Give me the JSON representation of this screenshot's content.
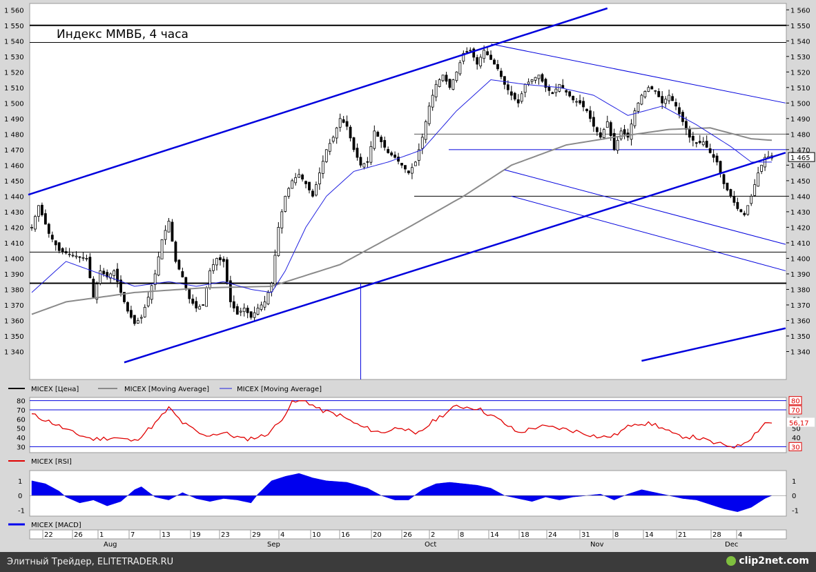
{
  "chart_title": "Индекс ММВБ, 4 часа",
  "footer": {
    "credit": "Элитный Трейдер, ELITETRADER.RU",
    "brand": "clip2net.com"
  },
  "colors": {
    "price": "#000000",
    "ma_long": "#8a8a8a",
    "ma_short": "#2020e0",
    "lines": "#0000dd",
    "rsi": "#e00000",
    "macd": "#0000ee",
    "background": "#ffffff",
    "frame": "#d8d8d8"
  },
  "chart_data": [
    {
      "type": "candlestick",
      "title": "Индекс ММВБ, 4 часа",
      "y_ticks": [
        "1 560",
        "1 550",
        "1 540",
        "1 530",
        "1 520",
        "1 510",
        "1 500",
        "1 490",
        "1 480",
        "1 470",
        "1 460",
        "1 450",
        "1 440",
        "1 430",
        "1 420",
        "1 410",
        "1 400",
        "1 390",
        "1 380",
        "1 370",
        "1 360",
        "1 350",
        "1 340"
      ],
      "ylim": [
        1330,
        1561
      ],
      "last_value_label": "1 465",
      "last_value": 1465,
      "horizontal_levels": [
        1550,
        1539,
        1480,
        1470,
        1440,
        1404,
        1384
      ],
      "legend": [
        "MICEX [Цена]",
        "MICEX [Moving Average]",
        "MICEX [Moving Average]"
      ],
      "close_anchors": [
        [
          0,
          1420
        ],
        [
          2,
          1434
        ],
        [
          5,
          1416
        ],
        [
          8,
          1405
        ],
        [
          12,
          1402
        ],
        [
          16,
          1400
        ],
        [
          18,
          1375
        ],
        [
          20,
          1392
        ],
        [
          22,
          1388
        ],
        [
          24,
          1392
        ],
        [
          26,
          1378
        ],
        [
          28,
          1366
        ],
        [
          30,
          1358
        ],
        [
          32,
          1362
        ],
        [
          34,
          1375
        ],
        [
          36,
          1390
        ],
        [
          38,
          1412
        ],
        [
          40,
          1424
        ],
        [
          42,
          1398
        ],
        [
          44,
          1388
        ],
        [
          46,
          1374
        ],
        [
          48,
          1368
        ],
        [
          50,
          1370
        ],
        [
          52,
          1392
        ],
        [
          54,
          1400
        ],
        [
          56,
          1398
        ],
        [
          58,
          1372
        ],
        [
          60,
          1364
        ],
        [
          62,
          1368
        ],
        [
          64,
          1362
        ],
        [
          66,
          1368
        ],
        [
          68,
          1372
        ],
        [
          70,
          1384
        ],
        [
          72,
          1420
        ],
        [
          74,
          1440
        ],
        [
          76,
          1450
        ],
        [
          78,
          1454
        ],
        [
          80,
          1448
        ],
        [
          82,
          1440
        ],
        [
          84,
          1455
        ],
        [
          86,
          1470
        ],
        [
          88,
          1478
        ],
        [
          90,
          1490
        ],
        [
          92,
          1485
        ],
        [
          94,
          1470
        ],
        [
          96,
          1460
        ],
        [
          98,
          1462
        ],
        [
          100,
          1482
        ],
        [
          102,
          1475
        ],
        [
          104,
          1468
        ],
        [
          106,
          1465
        ],
        [
          108,
          1460
        ],
        [
          110,
          1455
        ],
        [
          112,
          1462
        ],
        [
          114,
          1478
        ],
        [
          116,
          1498
        ],
        [
          118,
          1512
        ],
        [
          120,
          1518
        ],
        [
          122,
          1510
        ],
        [
          124,
          1520
        ],
        [
          126,
          1532
        ],
        [
          128,
          1534
        ],
        [
          130,
          1525
        ],
        [
          132,
          1534
        ],
        [
          134,
          1528
        ],
        [
          136,
          1522
        ],
        [
          138,
          1512
        ],
        [
          140,
          1505
        ],
        [
          142,
          1500
        ],
        [
          144,
          1512
        ],
        [
          146,
          1515
        ],
        [
          148,
          1518
        ],
        [
          150,
          1510
        ],
        [
          152,
          1506
        ],
        [
          154,
          1512
        ],
        [
          156,
          1507
        ],
        [
          158,
          1502
        ],
        [
          160,
          1500
        ],
        [
          162,
          1495
        ],
        [
          164,
          1485
        ],
        [
          166,
          1478
        ],
        [
          168,
          1488
        ],
        [
          170,
          1470
        ],
        [
          172,
          1482
        ],
        [
          174,
          1478
        ],
        [
          176,
          1495
        ],
        [
          178,
          1505
        ],
        [
          180,
          1510
        ],
        [
          182,
          1508
        ],
        [
          184,
          1500
        ],
        [
          186,
          1505
        ],
        [
          188,
          1498
        ],
        [
          190,
          1488
        ],
        [
          192,
          1478
        ],
        [
          194,
          1474
        ],
        [
          196,
          1475
        ],
        [
          198,
          1468
        ],
        [
          200,
          1462
        ],
        [
          202,
          1448
        ],
        [
          204,
          1440
        ],
        [
          206,
          1432
        ],
        [
          208,
          1428
        ],
        [
          210,
          1440
        ],
        [
          212,
          1455
        ],
        [
          214,
          1465
        ],
        [
          216,
          1466
        ]
      ],
      "moving_average_short": [
        [
          0,
          1378
        ],
        [
          10,
          1398
        ],
        [
          20,
          1390
        ],
        [
          30,
          1382
        ],
        [
          40,
          1385
        ],
        [
          48,
          1382
        ],
        [
          56,
          1385
        ],
        [
          64,
          1380
        ],
        [
          70,
          1378
        ],
        [
          74,
          1392
        ],
        [
          80,
          1420
        ],
        [
          86,
          1440
        ],
        [
          94,
          1456
        ],
        [
          104,
          1462
        ],
        [
          114,
          1470
        ],
        [
          124,
          1495
        ],
        [
          134,
          1515
        ],
        [
          144,
          1512
        ],
        [
          154,
          1510
        ],
        [
          164,
          1505
        ],
        [
          174,
          1492
        ],
        [
          184,
          1498
        ],
        [
          194,
          1486
        ],
        [
          204,
          1472
        ],
        [
          210,
          1462
        ],
        [
          216,
          1462
        ]
      ],
      "moving_average_long": [
        [
          0,
          1364
        ],
        [
          10,
          1372
        ],
        [
          30,
          1378
        ],
        [
          50,
          1381
        ],
        [
          70,
          1382
        ],
        [
          90,
          1396
        ],
        [
          110,
          1420
        ],
        [
          126,
          1440
        ],
        [
          140,
          1460
        ],
        [
          156,
          1473
        ],
        [
          170,
          1478
        ],
        [
          186,
          1483
        ],
        [
          198,
          1484
        ],
        [
          210,
          1477
        ],
        [
          216,
          1476
        ]
      ]
    },
    {
      "type": "line",
      "title": "MICEX [RSI]",
      "y_ticks": [
        "80",
        "70",
        "60",
        "50",
        "40",
        "30"
      ],
      "ylim": [
        25,
        82
      ],
      "levels": [
        80,
        70,
        30
      ],
      "level_labels": [
        "80",
        "70",
        "30"
      ],
      "last_value_label": "56,17",
      "last_value": 56.17,
      "values": [
        [
          0,
          65
        ],
        [
          6,
          56
        ],
        [
          12,
          45
        ],
        [
          18,
          38
        ],
        [
          24,
          40
        ],
        [
          30,
          36
        ],
        [
          36,
          55
        ],
        [
          40,
          72
        ],
        [
          44,
          56
        ],
        [
          50,
          42
        ],
        [
          56,
          45
        ],
        [
          62,
          38
        ],
        [
          68,
          42
        ],
        [
          72,
          55
        ],
        [
          76,
          78
        ],
        [
          80,
          80
        ],
        [
          84,
          70
        ],
        [
          90,
          64
        ],
        [
          96,
          52
        ],
        [
          102,
          45
        ],
        [
          108,
          52
        ],
        [
          112,
          42
        ],
        [
          118,
          60
        ],
        [
          124,
          74
        ],
        [
          130,
          72
        ],
        [
          136,
          60
        ],
        [
          142,
          45
        ],
        [
          148,
          52
        ],
        [
          154,
          50
        ],
        [
          160,
          46
        ],
        [
          166,
          40
        ],
        [
          170,
          42
        ],
        [
          176,
          56
        ],
        [
          182,
          54
        ],
        [
          188,
          42
        ],
        [
          194,
          40
        ],
        [
          200,
          33
        ],
        [
          206,
          30
        ],
        [
          210,
          40
        ],
        [
          214,
          56
        ],
        [
          216,
          56
        ]
      ]
    },
    {
      "type": "area",
      "title": "MICEX [MACD]",
      "y_ticks": [
        "1",
        "0",
        "-1"
      ],
      "ylim": [
        -1.3,
        1.6
      ],
      "values": [
        [
          0,
          1.0
        ],
        [
          4,
          0.8
        ],
        [
          8,
          0.3
        ],
        [
          10,
          -0.1
        ],
        [
          14,
          -0.5
        ],
        [
          18,
          -0.3
        ],
        [
          22,
          -0.7
        ],
        [
          26,
          -0.4
        ],
        [
          30,
          0.4
        ],
        [
          32,
          0.6
        ],
        [
          36,
          -0.1
        ],
        [
          40,
          -0.3
        ],
        [
          44,
          0.2
        ],
        [
          48,
          -0.2
        ],
        [
          52,
          -0.4
        ],
        [
          56,
          -0.2
        ],
        [
          60,
          -0.3
        ],
        [
          64,
          -0.5
        ],
        [
          66,
          0.1
        ],
        [
          70,
          1.0
        ],
        [
          74,
          1.3
        ],
        [
          78,
          1.5
        ],
        [
          82,
          1.2
        ],
        [
          86,
          1.0
        ],
        [
          92,
          0.9
        ],
        [
          98,
          0.5
        ],
        [
          102,
          0.0
        ],
        [
          106,
          -0.3
        ],
        [
          110,
          -0.3
        ],
        [
          114,
          0.4
        ],
        [
          118,
          0.8
        ],
        [
          122,
          0.9
        ],
        [
          126,
          0.8
        ],
        [
          130,
          0.7
        ],
        [
          134,
          0.5
        ],
        [
          138,
          0.0
        ],
        [
          142,
          -0.2
        ],
        [
          146,
          -0.4
        ],
        [
          150,
          -0.1
        ],
        [
          154,
          -0.3
        ],
        [
          158,
          -0.1
        ],
        [
          162,
          0.0
        ],
        [
          166,
          0.1
        ],
        [
          170,
          -0.3
        ],
        [
          174,
          0.1
        ],
        [
          178,
          0.4
        ],
        [
          182,
          0.2
        ],
        [
          186,
          0.0
        ],
        [
          190,
          -0.2
        ],
        [
          194,
          -0.3
        ],
        [
          198,
          -0.6
        ],
        [
          202,
          -0.9
        ],
        [
          206,
          -1.1
        ],
        [
          210,
          -0.8
        ],
        [
          214,
          -0.2
        ],
        [
          216,
          0.0
        ]
      ]
    }
  ],
  "x_axis": {
    "day_labels": [
      "22",
      "26",
      "1",
      "7",
      "13",
      "19",
      "23",
      "29",
      "4",
      "10",
      "16",
      "20",
      "26",
      "2",
      "8",
      "14",
      "18",
      "24",
      "31",
      "8",
      "14",
      "21",
      "28",
      "4"
    ],
    "month_labels": [
      "Aug",
      "Sep",
      "Oct",
      "Nov",
      "Dec"
    ]
  }
}
